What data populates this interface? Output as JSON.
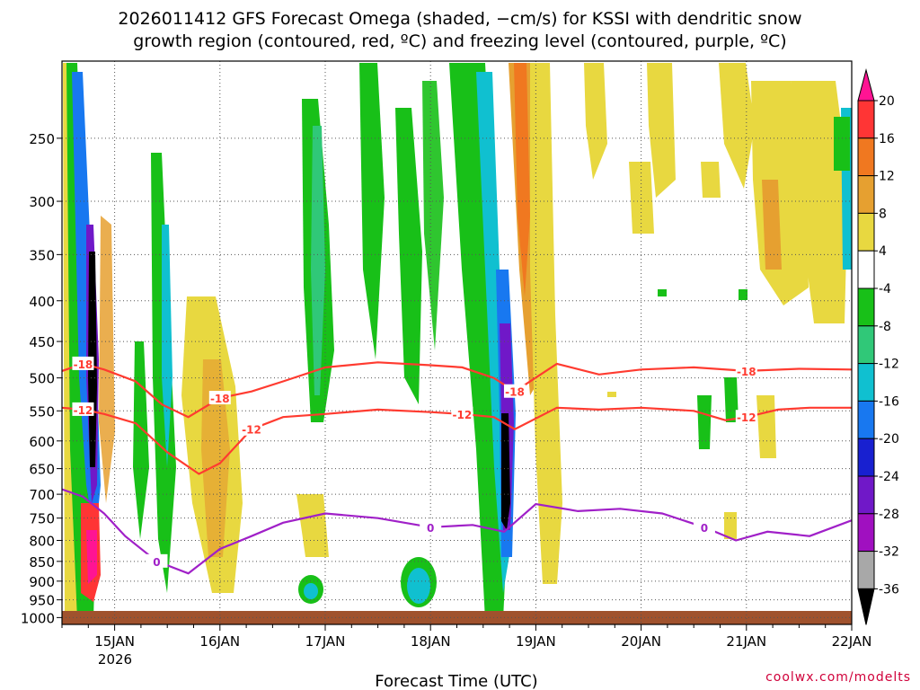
{
  "chart_data": {
    "type": "heatmap",
    "title_lines": [
      "2026011412 GFS Forecast Omega (shaded, −cm/s) for KSSI with dendritic snow",
      "growth region (contoured, red, ºC) and freezing level (contoured, purple, ºC)"
    ],
    "xlabel": "Forecast Time (UTC)",
    "x_ticks": [
      "15JAN",
      "16JAN",
      "17JAN",
      "18JAN",
      "19JAN",
      "20JAN",
      "21JAN",
      "22JAN"
    ],
    "x_year_label": "2026",
    "x_range_days": [
      14.5,
      22.0
    ],
    "y_ticks": [
      250,
      300,
      350,
      400,
      450,
      500,
      550,
      600,
      650,
      700,
      750,
      800,
      850,
      900,
      950,
      1000
    ],
    "y_range_hpa": [
      200,
      1020
    ],
    "y_reversed": true,
    "grid": true,
    "colorbar": {
      "labels": [
        "20",
        "16",
        "12",
        "8",
        "4",
        "-4",
        "-8",
        "-12",
        "-16",
        "-20",
        "-24",
        "-28",
        "-32",
        "-36"
      ],
      "colors": [
        "#ff1493",
        "#ff3535",
        "#f07820",
        "#e6a030",
        "#e8d840",
        "#ffffff",
        "#18c018",
        "#30c878",
        "#10c0d0",
        "#1878f0",
        "#1820d0",
        "#7018c8",
        "#a010c0",
        "#a8a8a8",
        "#000000"
      ],
      "placement": "right"
    },
    "omega_features": [
      {
        "time": 14.65,
        "p_top": 220,
        "p_bottom": 980,
        "value": -36,
        "note": "strong ascent column"
      },
      {
        "time": 14.65,
        "p_top": 760,
        "p_bottom": 960,
        "value": 20
      },
      {
        "time": 15.5,
        "p_top": 260,
        "p_bottom": 800,
        "value": -12
      },
      {
        "time": 16.1,
        "p_top": 380,
        "p_bottom": 850,
        "value": 4
      },
      {
        "time": 16.9,
        "p_top": 250,
        "p_bottom": 520,
        "value": -8
      },
      {
        "time": 16.85,
        "p_top": 920,
        "p_bottom": 990,
        "value": -12
      },
      {
        "time": 17.85,
        "p_top": 900,
        "p_bottom": 990,
        "value": -12
      },
      {
        "time": 18.68,
        "p_top": 380,
        "p_bottom": 950,
        "value": -36,
        "note": "strong ascent column"
      },
      {
        "time": 18.85,
        "p_top": 210,
        "p_bottom": 520,
        "value": 12
      },
      {
        "time": 19.0,
        "p_top": 500,
        "p_bottom": 900,
        "value": 4
      },
      {
        "time": 21.2,
        "p_top": 230,
        "p_bottom": 420,
        "value": 8
      },
      {
        "time": 21.9,
        "p_top": 240,
        "p_bottom": 400,
        "value": -12
      }
    ],
    "series": [
      {
        "name": "-18",
        "color": "#ff3b30",
        "x": [
          14.5,
          14.7,
          14.9,
          15.2,
          15.45,
          15.7,
          16.0,
          16.3,
          16.6,
          17.0,
          17.5,
          18.0,
          18.3,
          18.6,
          18.8,
          19.2,
          19.6,
          20.0,
          20.5,
          21.0,
          21.5,
          22.0
        ],
        "y": [
          490,
          480,
          488,
          505,
          540,
          560,
          530,
          520,
          505,
          485,
          478,
          482,
          485,
          500,
          520,
          480,
          495,
          488,
          485,
          490,
          487,
          488
        ]
      },
      {
        "name": "-12",
        "color": "#ff3b30",
        "x": [
          14.5,
          14.7,
          14.9,
          15.2,
          15.5,
          15.8,
          16.0,
          16.3,
          16.6,
          17.0,
          17.5,
          18.0,
          18.3,
          18.6,
          18.8,
          19.2,
          19.6,
          20.0,
          20.5,
          20.8,
          21.0,
          21.3,
          21.6,
          22.0
        ],
        "y": [
          545,
          548,
          555,
          570,
          620,
          660,
          640,
          580,
          560,
          555,
          548,
          552,
          555,
          560,
          580,
          545,
          548,
          545,
          550,
          565,
          560,
          548,
          545,
          545
        ]
      },
      {
        "name": "0",
        "color": "#a020c8",
        "x": [
          14.5,
          14.7,
          14.9,
          15.1,
          15.4,
          15.7,
          16.0,
          16.3,
          16.6,
          17.0,
          17.5,
          18.0,
          18.4,
          18.7,
          19.0,
          19.4,
          19.8,
          20.2,
          20.6,
          20.9,
          21.2,
          21.6,
          22.0
        ],
        "y": [
          690,
          705,
          740,
          790,
          850,
          880,
          820,
          790,
          760,
          740,
          750,
          770,
          765,
          780,
          720,
          735,
          730,
          740,
          770,
          800,
          780,
          790,
          755
        ]
      }
    ]
  },
  "credit": "coolwx.com/modelts"
}
